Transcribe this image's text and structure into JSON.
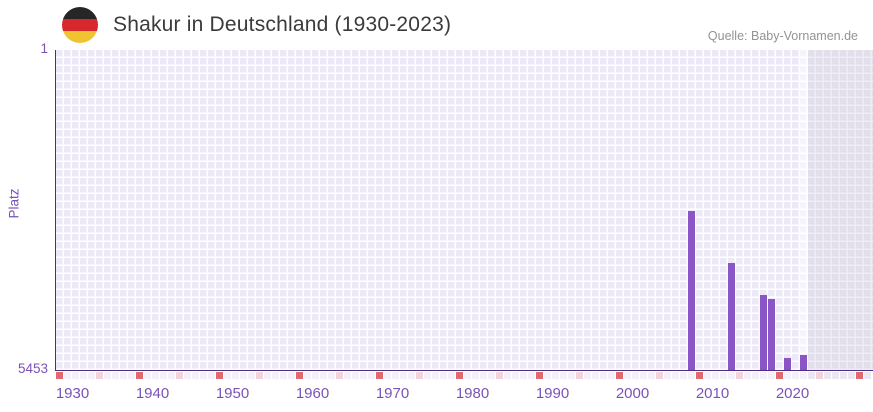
{
  "header": {
    "title": "Shakur in Deutschland (1930-2023)",
    "source": "Quelle: Baby-Vornamen.de",
    "flag_icon": "germany-flag-icon",
    "flag_colors": [
      "#262626",
      "#d6282d",
      "#f0c431"
    ]
  },
  "chart_data": {
    "type": "bar",
    "title": "Shakur in Deutschland (1930-2023)",
    "xlabel": "",
    "ylabel": "Platz",
    "x_range": [
      1930,
      2023
    ],
    "x_extended_to": 2031,
    "future_zone_start": 2024,
    "ylim": [
      1,
      5453
    ],
    "y_axis_reversed": true,
    "y_tick_labels": [
      "1",
      "5453"
    ],
    "x_tick_labels": [
      "1930",
      "1940",
      "1950",
      "1960",
      "1970",
      "1980",
      "1990",
      "2000",
      "2010",
      "2020"
    ],
    "grid": "checkered",
    "legend": null,
    "points": [
      {
        "year": 2009,
        "platz": 2744
      },
      {
        "year": 2014,
        "platz": 3625
      },
      {
        "year": 2018,
        "platz": 4175
      },
      {
        "year": 2019,
        "platz": 4243
      },
      {
        "year": 2021,
        "platz": 5254
      },
      {
        "year": 2023,
        "platz": 5203
      }
    ]
  },
  "colors": {
    "bar": "#8a55c6",
    "axis_line": "#4d2d86",
    "tick_label": "#7a52b8",
    "plot_cell": "#ece8f7",
    "future_cell": "#e2dfeb",
    "decade_marker": "#e0696f",
    "half_decade_marker": "#f2d3dc",
    "title_text": "#3b3b3b",
    "source_text": "#939398"
  }
}
